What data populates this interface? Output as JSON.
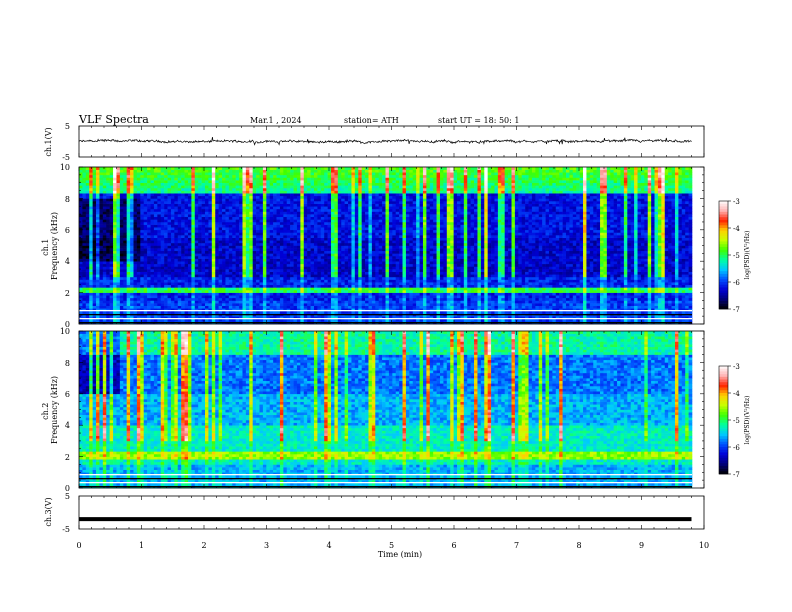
{
  "header": {
    "title": "VLF  Spectra",
    "date": "Mar.1  , 2024",
    "station": "station= ATH",
    "start": "start  UT  =    18: 50: 1"
  },
  "chart_data": [
    {
      "type": "line",
      "ylabel": "ch.1(V)",
      "ylim": [
        -5,
        5
      ],
      "y_ticks": [
        "5",
        "-5"
      ],
      "xlim": [
        0,
        10
      ],
      "baseline": 0,
      "amplitude": 0.6,
      "color": "#000000"
    },
    {
      "type": "heatmap",
      "ylabel": "ch.1\nFrequency  (kHz)",
      "ylim": [
        0,
        10
      ],
      "y_ticks": [
        "0",
        "2",
        "4",
        "6",
        "8",
        "10"
      ],
      "xlim": [
        0,
        10
      ],
      "data_end_min": 9.8,
      "colorbar": {
        "label": "log(PSD)(V²/Hz)",
        "range": [
          -7,
          -3
        ],
        "ticks": [
          "-3",
          "-4",
          "-5",
          "-6",
          "-7"
        ]
      }
    },
    {
      "type": "heatmap",
      "ylabel": "ch.2\nFrequency  (kHz)",
      "ylim": [
        0,
        10
      ],
      "y_ticks": [
        "0",
        "2",
        "4",
        "6",
        "8",
        "10"
      ],
      "xlim": [
        0,
        10
      ],
      "data_end_min": 9.8,
      "colorbar": {
        "label": "log(PSD)(V²/Hz)",
        "range": [
          -7,
          -3
        ],
        "ticks": [
          "-3",
          "-4",
          "-5",
          "-6",
          "-7"
        ]
      }
    },
    {
      "type": "line",
      "ylabel": "ch.3(V)",
      "ylim": [
        -5,
        5
      ],
      "y_ticks": [
        "5",
        "-5"
      ],
      "xlim": [
        0,
        10
      ],
      "baseline": -2,
      "amplitude": 0.15,
      "color": "#000000"
    }
  ],
  "x_axis": {
    "label": "Time  (min)",
    "ticks": [
      "0",
      "1",
      "2",
      "3",
      "4",
      "5",
      "6",
      "7",
      "8",
      "9",
      "10"
    ]
  },
  "colors": {
    "colormap": [
      "#000000",
      "#00007a",
      "#0000d8",
      "#0050ff",
      "#00c8ff",
      "#00ffa0",
      "#40ff00",
      "#c8ff00",
      "#ffd000",
      "#ff2000",
      "#ffb4b4",
      "#ffffff"
    ]
  }
}
